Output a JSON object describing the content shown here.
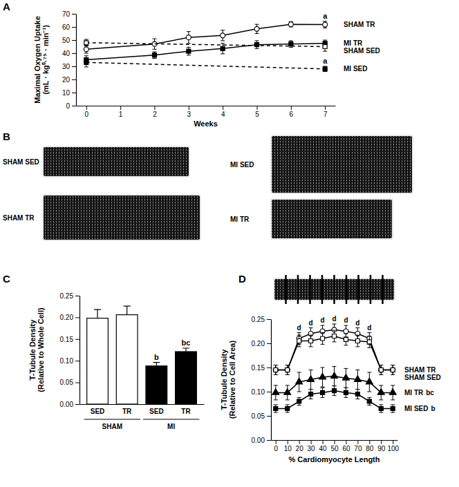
{
  "chart_data": [
    {
      "type": "line",
      "title": "A",
      "xlabel": "Weeks",
      "ylabel": [
        "Maximal Oxygen Uptake",
        "(mL · kg⁰·⁷⁵ · min⁻¹)"
      ],
      "xlim": [
        -0.3,
        7.3
      ],
      "xticks": [
        0,
        1,
        2,
        3,
        4,
        5,
        6,
        7
      ],
      "ylim": [
        0,
        70
      ],
      "yticks": [
        0,
        10,
        20,
        30,
        40,
        50,
        60,
        70
      ],
      "series": [
        {
          "name": "SHAM TR",
          "x": [
            0,
            2,
            3,
            4,
            5,
            6,
            7
          ],
          "values": [
            43,
            47,
            52,
            53.5,
            58.5,
            62,
            61.8
          ],
          "errors": [
            3,
            4,
            4.5,
            4,
            3.5,
            2,
            2.5
          ],
          "marker": "circle-open",
          "line_style": "solid",
          "color": "#000000",
          "annotation": "a"
        },
        {
          "name": "MI TR",
          "x": [
            0,
            2,
            3,
            4,
            5,
            6,
            7
          ],
          "values": [
            35,
            38.5,
            41.5,
            43.5,
            46.5,
            47,
            47.5
          ],
          "errors": [
            3,
            2.5,
            3,
            4,
            3,
            2.5,
            2.5
          ],
          "marker": "square",
          "line_style": "solid",
          "color": "#000000"
        },
        {
          "name": "SHAM SED",
          "x": [
            0,
            7
          ],
          "values": [
            48,
            45
          ],
          "errors": [
            2.5,
            3.5
          ],
          "marker": "square-open",
          "line_style": "dashed",
          "color": "#000000"
        },
        {
          "name": "MI SED",
          "x": [
            0,
            7
          ],
          "values": [
            33,
            28
          ],
          "errors": [
            3.5,
            2
          ],
          "marker": "square",
          "line_style": "dashed",
          "color": "#000000",
          "annotation": "a"
        }
      ]
    },
    {
      "type": "image",
      "title": "B",
      "labels": [
        "SHAM SED",
        "SHAM TR",
        "MI SED",
        "MI TR"
      ]
    },
    {
      "type": "bar",
      "title": "C",
      "ylabel": [
        "T-Tubule Density",
        "(Relative to Whole Cell)"
      ],
      "categories": [
        "SED",
        "TR",
        "SED",
        "TR"
      ],
      "group_labels": [
        "SHAM",
        "MI"
      ],
      "values": [
        0.198,
        0.206,
        0.088,
        0.121
      ],
      "errors": [
        0.02,
        0.02,
        0.008,
        0.008
      ],
      "annotations": [
        null,
        null,
        "b",
        "bc"
      ],
      "colors": [
        "#ffffff",
        "#ffffff",
        "#000000",
        "#000000"
      ],
      "ylim": [
        0,
        0.25
      ],
      "yticks": [
        {
          "value": 0,
          "label": "0.00"
        },
        0.05,
        {
          "value": 0.1,
          "label": "0.10"
        },
        0.15,
        {
          "value": 0.2,
          "label": "0.20"
        },
        0.25
      ]
    },
    {
      "type": "line",
      "title": "D",
      "xlabel": "% Cardiomyocyte Length",
      "ylabel": [
        "T-Tubule Density",
        "(Relative to Cell Area)"
      ],
      "x": [
        0,
        10,
        20,
        30,
        40,
        50,
        60,
        70,
        80,
        90,
        100
      ],
      "xlim": [
        -4,
        104
      ],
      "xticks": [
        0,
        10,
        20,
        30,
        40,
        50,
        60,
        70,
        80,
        90,
        100
      ],
      "ylim": [
        0,
        0.25
      ],
      "yticks": [
        {
          "value": 0,
          "label": "0.00"
        },
        0.05,
        {
          "value": 0.1,
          "label": "0.10"
        },
        0.15,
        {
          "value": 0.2,
          "label": "0.20"
        },
        0.25
      ],
      "series": [
        {
          "name": "SHAM TR",
          "values": [
            0.145,
            0.145,
            0.21,
            0.22,
            0.225,
            0.228,
            0.225,
            0.22,
            0.21,
            0.145,
            0.145
          ],
          "errors": [
            0.01,
            0.01,
            0.012,
            0.012,
            0.012,
            0.012,
            0.012,
            0.012,
            0.012,
            0.01,
            0.01
          ],
          "annotations": [
            null,
            null,
            "d",
            "d",
            "d",
            "d",
            "d",
            "d",
            "d",
            null,
            null
          ],
          "marker": "circle-open",
          "line_style": "solid",
          "color": "#000000"
        },
        {
          "name": "SHAM SED",
          "values": [
            0.145,
            0.145,
            0.205,
            0.205,
            0.21,
            0.215,
            0.208,
            0.205,
            0.203,
            0.145,
            0.145
          ],
          "errors": [
            0.01,
            0.01,
            0.012,
            0.012,
            0.012,
            0.012,
            0.012,
            0.012,
            0.012,
            0.01,
            0.01
          ],
          "marker": "square-open",
          "line_style": "solid",
          "color": "#000000"
        },
        {
          "name": "MI TR",
          "values": [
            0.098,
            0.098,
            0.12,
            0.125,
            0.13,
            0.132,
            0.128,
            0.125,
            0.12,
            0.098,
            0.098
          ],
          "errors": [
            0.015,
            0.015,
            0.02,
            0.02,
            0.02,
            0.02,
            0.02,
            0.02,
            0.02,
            0.015,
            0.015
          ],
          "marker": "triangle",
          "line_style": "solid",
          "color": "#000000",
          "annotation": "bc"
        },
        {
          "name": "MI SED",
          "values": [
            0.065,
            0.065,
            0.08,
            0.095,
            0.098,
            0.102,
            0.098,
            0.095,
            0.08,
            0.065,
            0.065
          ],
          "errors": [
            0.008,
            0.008,
            0.008,
            0.01,
            0.01,
            0.01,
            0.01,
            0.01,
            0.008,
            0.008,
            0.008
          ],
          "marker": "square",
          "line_style": "solid",
          "color": "#000000",
          "annotation": "b"
        }
      ]
    }
  ]
}
